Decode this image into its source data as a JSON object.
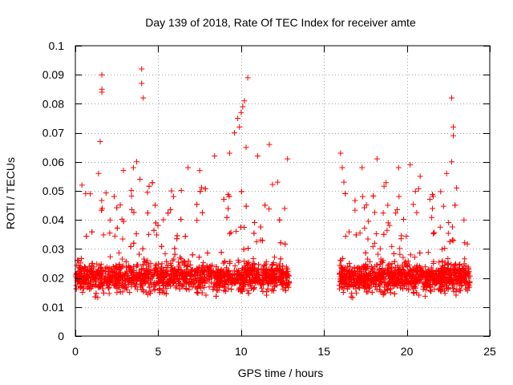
{
  "chart_data": {
    "type": "scatter",
    "title": "Day 139 of 2018, Rate Of TEC Index for receiver amte",
    "xlabel": "GPS time / hours",
    "ylabel": "ROTI / TECUs",
    "xlim": [
      0,
      25
    ],
    "ylim": [
      0,
      0.1
    ],
    "xticks": [
      0,
      5,
      10,
      15,
      20,
      25
    ],
    "xtick_labels": [
      "0",
      "5",
      "10",
      "15",
      "20",
      "25"
    ],
    "yticks": [
      0,
      0.01,
      0.02,
      0.03,
      0.04,
      0.05,
      0.06,
      0.07,
      0.08,
      0.09,
      0.1
    ],
    "ytick_labels": [
      "0",
      "0.01",
      "0.02",
      "0.03",
      "0.04",
      "0.05",
      "0.06",
      "0.07",
      "0.08",
      "0.09",
      "0.1"
    ],
    "grid": true,
    "marker": "+",
    "series_color": "#ff0000",
    "data_gap_hours": [
      12.9,
      15.9
    ],
    "outliers": [
      {
        "x": 1.6,
        "y": 0.09
      },
      {
        "x": 1.6,
        "y": 0.085
      },
      {
        "x": 1.6,
        "y": 0.084
      },
      {
        "x": 1.5,
        "y": 0.067
      },
      {
        "x": 1.4,
        "y": 0.056
      },
      {
        "x": 4.0,
        "y": 0.092
      },
      {
        "x": 4.0,
        "y": 0.087
      },
      {
        "x": 4.1,
        "y": 0.082
      },
      {
        "x": 3.7,
        "y": 0.06
      },
      {
        "x": 3.5,
        "y": 0.058
      },
      {
        "x": 3.9,
        "y": 0.054
      },
      {
        "x": 0.4,
        "y": 0.052
      },
      {
        "x": 0.9,
        "y": 0.049
      },
      {
        "x": 2.9,
        "y": 0.057
      },
      {
        "x": 5.8,
        "y": 0.05
      },
      {
        "x": 6.8,
        "y": 0.058
      },
      {
        "x": 7.5,
        "y": 0.057
      },
      {
        "x": 8.4,
        "y": 0.062
      },
      {
        "x": 9.3,
        "y": 0.063
      },
      {
        "x": 9.6,
        "y": 0.07
      },
      {
        "x": 9.8,
        "y": 0.075
      },
      {
        "x": 9.9,
        "y": 0.072
      },
      {
        "x": 10.0,
        "y": 0.077
      },
      {
        "x": 10.1,
        "y": 0.079
      },
      {
        "x": 10.2,
        "y": 0.081
      },
      {
        "x": 10.4,
        "y": 0.089
      },
      {
        "x": 10.3,
        "y": 0.065
      },
      {
        "x": 11.0,
        "y": 0.062
      },
      {
        "x": 11.7,
        "y": 0.066
      },
      {
        "x": 12.2,
        "y": 0.053
      },
      {
        "x": 12.8,
        "y": 0.061
      },
      {
        "x": 16.0,
        "y": 0.063
      },
      {
        "x": 16.1,
        "y": 0.058
      },
      {
        "x": 16.2,
        "y": 0.053
      },
      {
        "x": 17.3,
        "y": 0.058
      },
      {
        "x": 18.2,
        "y": 0.061
      },
      {
        "x": 19.5,
        "y": 0.058
      },
      {
        "x": 20.2,
        "y": 0.059
      },
      {
        "x": 20.8,
        "y": 0.055
      },
      {
        "x": 22.4,
        "y": 0.056
      },
      {
        "x": 22.7,
        "y": 0.06
      },
      {
        "x": 22.8,
        "y": 0.069
      },
      {
        "x": 22.8,
        "y": 0.072
      },
      {
        "x": 22.7,
        "y": 0.082
      },
      {
        "x": 23.0,
        "y": 0.051
      }
    ]
  }
}
